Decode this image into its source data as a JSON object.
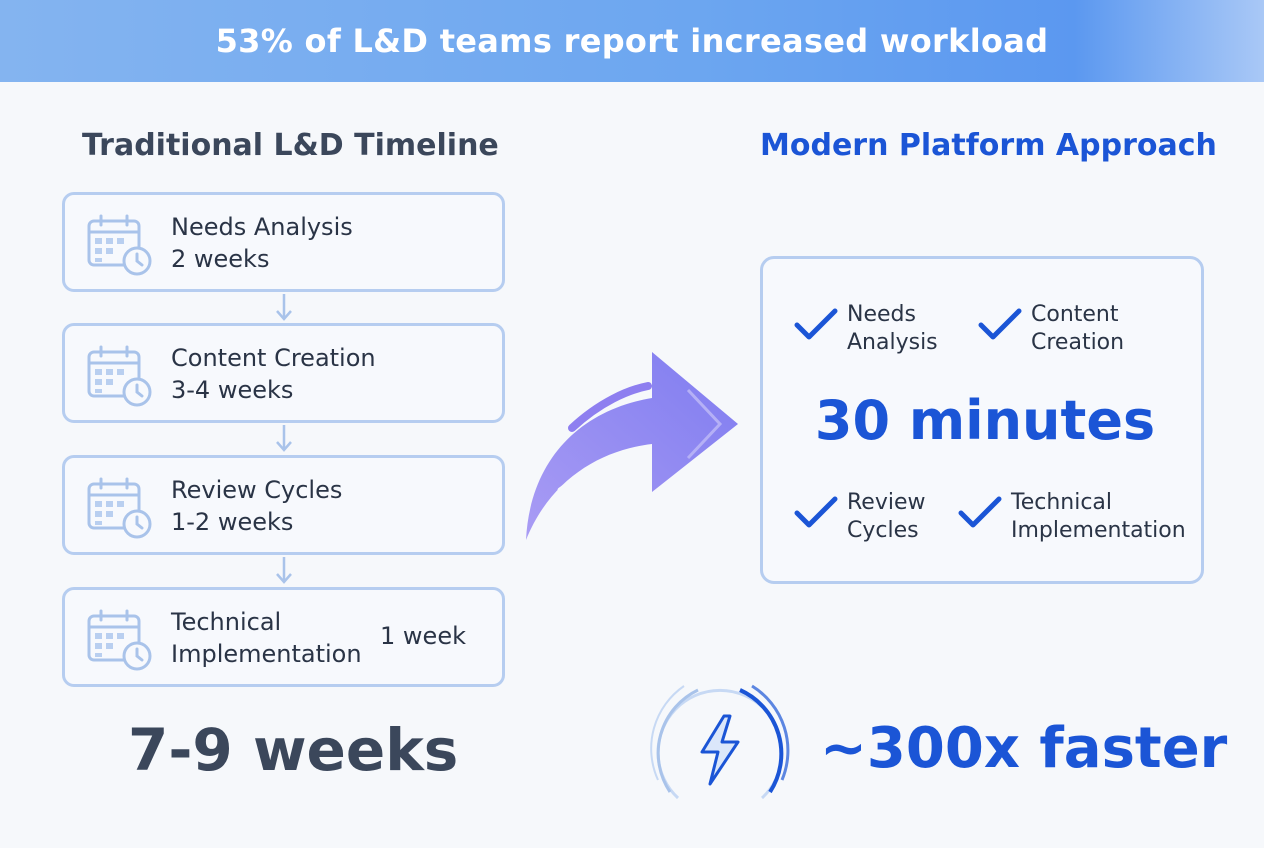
{
  "banner": {
    "title": "53% of L&D teams report increased workload"
  },
  "traditional": {
    "heading": "Traditional L&D Timeline",
    "steps": [
      {
        "name": "Needs Analysis",
        "duration": "2 weeks",
        "icon": "calendar-clock-icon"
      },
      {
        "name": "Content Creation",
        "duration": "3-4 weeks",
        "icon": "calendar-clock-icon"
      },
      {
        "name": "Review Cycles",
        "duration": "1-2 weeks",
        "icon": "calendar-clock-icon"
      },
      {
        "name_line1": "Technical",
        "name_line2": "Implementation",
        "duration": "1 week",
        "icon": "calendar-clock-icon"
      }
    ],
    "total": "7-9 weeks"
  },
  "modern": {
    "heading": "Modern Platform Approach",
    "items": [
      {
        "line1": "Needs",
        "line2": "Analysis",
        "icon": "checkmark-icon"
      },
      {
        "line1": "Content",
        "line2": "Creation",
        "icon": "checkmark-icon"
      },
      {
        "line1": "Review",
        "line2": "Cycles",
        "icon": "checkmark-icon"
      },
      {
        "line1": "Technical",
        "line2": "Implementation",
        "icon": "checkmark-icon"
      }
    ],
    "total": "30 minutes",
    "speedup": "~300x faster"
  },
  "colors": {
    "accent": "#1b55d6",
    "border": "#b6cdf0",
    "arrow": "#8a7ef0",
    "heading_dark": "#3b475b"
  }
}
